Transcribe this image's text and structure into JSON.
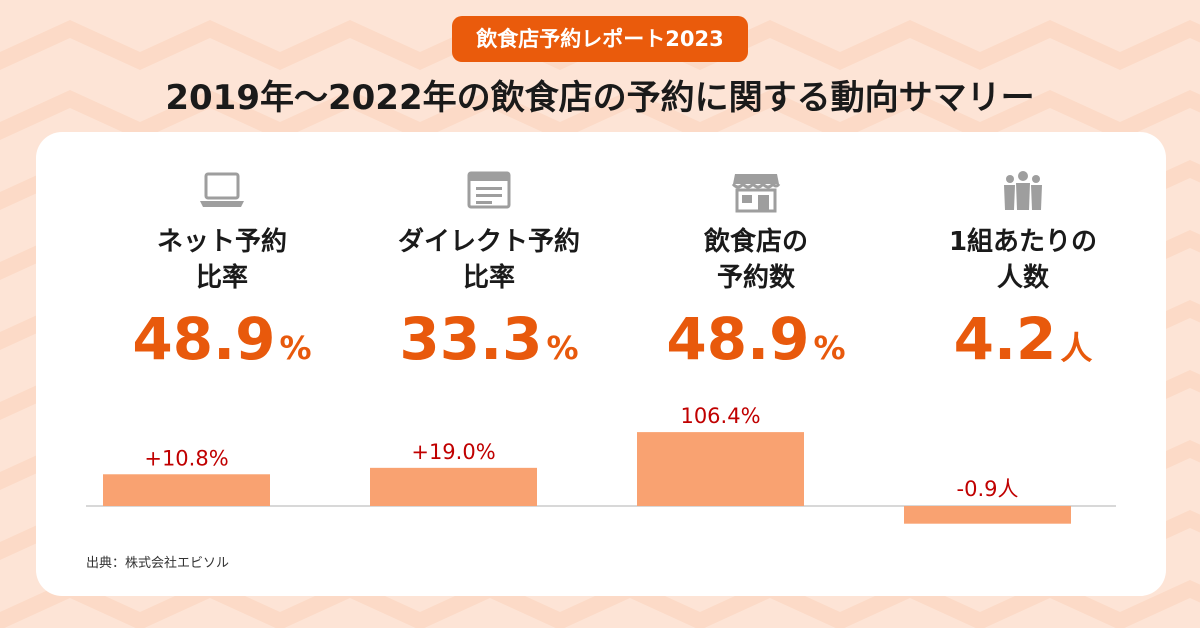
{
  "badge": "飲食店予約レポート2023",
  "title": "2019年〜2022年の飲食店の予約に関する動向サマリー",
  "metrics": [
    {
      "icon": "laptop-icon",
      "label_line1": "ネット予約",
      "label_line2": "比率",
      "value": "48.9",
      "unit": "%"
    },
    {
      "icon": "browser-window-icon",
      "label_line1": "ダイレクト予約",
      "label_line2": "比率",
      "value": "33.3",
      "unit": "%"
    },
    {
      "icon": "storefront-icon",
      "label_line1": "飲食店の",
      "label_line2": "予約数",
      "value": "48.9",
      "unit": "%"
    },
    {
      "icon": "people-group-icon",
      "label_line1": "1組あたりの",
      "label_line2": "人数",
      "value": "4.2",
      "unit": "人"
    }
  ],
  "chart_data": {
    "type": "bar",
    "categories": [
      "ネット予約比率",
      "ダイレクト予約比率",
      "飲食店の予約数",
      "1組あたりの人数"
    ],
    "values": [
      10.8,
      19.0,
      106.4,
      -0.9
    ],
    "data_labels": [
      "+10.8%",
      "+19.0%",
      "106.4%",
      "-0.9人"
    ],
    "title": "",
    "xlabel": "",
    "ylabel": "",
    "grid": false,
    "legend": "none",
    "colors": {
      "bar": "#f9a271",
      "label": "#c00000",
      "baseline": "#cccccc"
    }
  },
  "source": "出典：株式会社エビソル",
  "colors": {
    "accent": "#ea5b0c",
    "value_text": "#e8590c",
    "background": "#fde4d6",
    "icon": "#9e9e9e"
  }
}
